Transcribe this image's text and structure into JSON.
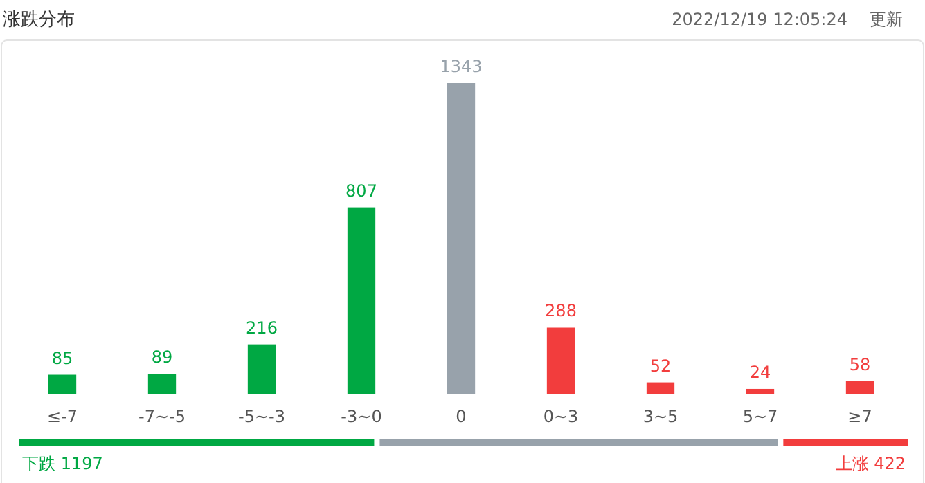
{
  "chart_data": {
    "type": "bar",
    "title": "涨跌分布",
    "categories": [
      "≤-7",
      "-7~-5",
      "-5~-3",
      "-3~0",
      "0",
      "0~3",
      "3~5",
      "5~7",
      "≥7"
    ],
    "values": [
      85,
      89,
      216,
      807,
      1343,
      288,
      52,
      24,
      58
    ],
    "colors": [
      "#00a843",
      "#00a843",
      "#00a843",
      "#00a843",
      "#98a2ab",
      "#f23d3d",
      "#f23d3d",
      "#f23d3d",
      "#f23d3d"
    ],
    "data_labels": true,
    "annotations": [
      "2022/12/19 12:05:24",
      "更新",
      "下跌 1197",
      "上涨 422"
    ]
  }
}
